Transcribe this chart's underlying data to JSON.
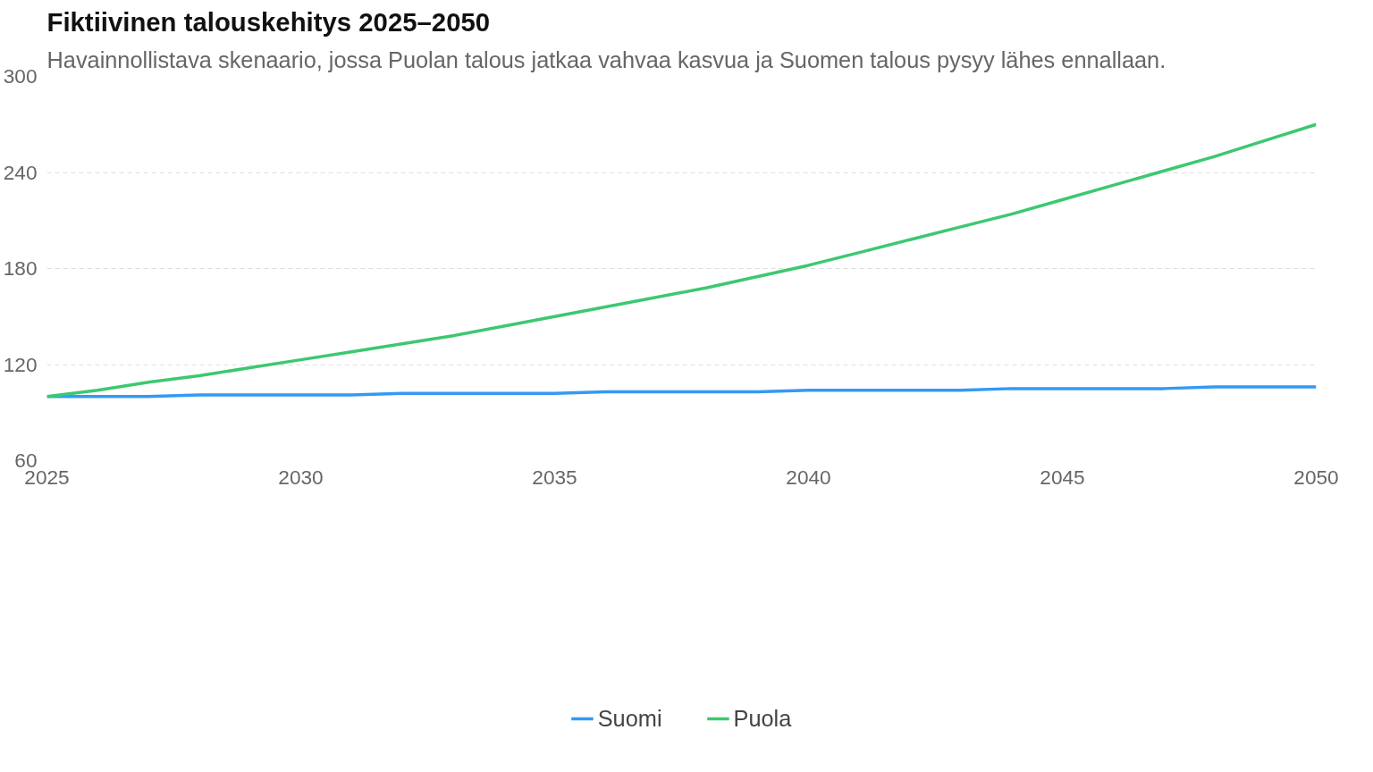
{
  "chart_data": {
    "type": "line",
    "title": "Fiktiivinen talouskehitys 2025–2050",
    "subtitle": "Havainnollistava skenaario, jossa Puolan talous jatkaa vahvaa kasvua ja Suomen talous pysyy lähes ennallaan.",
    "x": [
      2025,
      2026,
      2027,
      2028,
      2029,
      2030,
      2031,
      2032,
      2033,
      2034,
      2035,
      2036,
      2037,
      2038,
      2039,
      2040,
      2041,
      2042,
      2043,
      2044,
      2045,
      2046,
      2047,
      2048,
      2049,
      2050
    ],
    "series": [
      {
        "name": "Suomi",
        "color": "#3399f5",
        "values": [
          100,
          100,
          100,
          101,
          101,
          101,
          101,
          102,
          102,
          102,
          102,
          103,
          103,
          103,
          103,
          104,
          104,
          104,
          104,
          105,
          105,
          105,
          105,
          106,
          106,
          106
        ]
      },
      {
        "name": "Puola",
        "color": "#3cc870",
        "values": [
          100,
          104,
          109,
          113,
          118,
          123,
          128,
          133,
          138,
          144,
          150,
          156,
          162,
          168,
          175,
          182,
          190,
          198,
          206,
          214,
          223,
          232,
          241,
          250,
          260,
          270
        ]
      }
    ],
    "xlim": [
      2025,
      2050
    ],
    "ylim": [
      60,
      300
    ],
    "xticks": [
      2025,
      2030,
      2035,
      2040,
      2045,
      2050
    ],
    "yticks": [
      60,
      120,
      180,
      240,
      300
    ],
    "grid": "y",
    "legend": "bottom",
    "marker": "none",
    "line_style": "solid"
  }
}
